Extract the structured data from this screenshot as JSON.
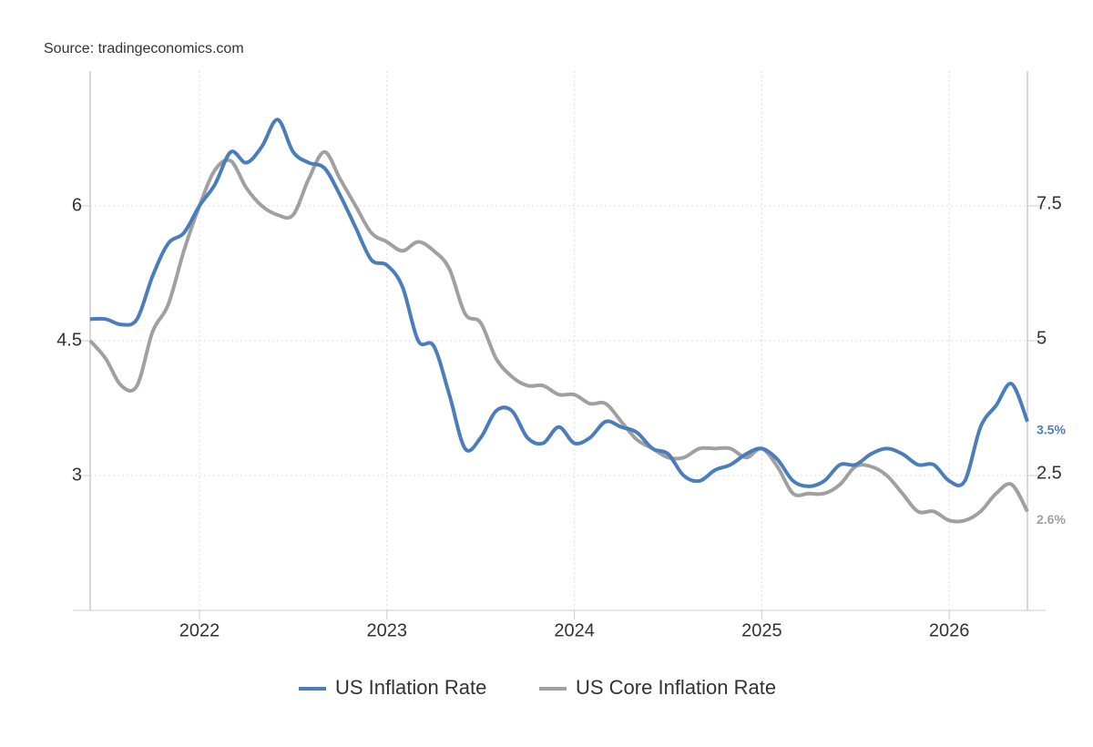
{
  "chart_data": {
    "type": "line",
    "source": "Source: tradingeconomics.com",
    "x": [
      2021.417,
      2021.5,
      2021.583,
      2021.667,
      2021.75,
      2021.833,
      2021.917,
      2022,
      2022.083,
      2022.167,
      2022.25,
      2022.333,
      2022.417,
      2022.5,
      2022.583,
      2022.667,
      2022.75,
      2022.833,
      2022.917,
      2023,
      2023.083,
      2023.167,
      2023.25,
      2023.333,
      2023.417,
      2023.5,
      2023.583,
      2023.667,
      2023.75,
      2023.833,
      2023.917,
      2024,
      2024.083,
      2024.167,
      2024.25,
      2024.333,
      2024.417,
      2024.5,
      2024.583,
      2024.667,
      2024.75,
      2024.833,
      2024.917,
      2025,
      2025.083,
      2025.167,
      2025.25,
      2025.333,
      2025.417,
      2025.5,
      2025.583,
      2025.667,
      2025.75,
      2025.833,
      2025.917,
      2026,
      2026.083,
      2026.167,
      2026.25,
      2026.333,
      2026.417
    ],
    "series": [
      {
        "name": "US Inflation Rate",
        "color": "#4a7ebb",
        "axis": "y2",
        "values": [
          5.4,
          5.4,
          5.3,
          5.4,
          6.2,
          6.8,
          7.0,
          7.5,
          7.9,
          8.5,
          8.3,
          8.6,
          9.1,
          8.5,
          8.3,
          8.2,
          7.7,
          7.1,
          6.5,
          6.4,
          6.0,
          5.0,
          4.9,
          4.0,
          3.0,
          3.2,
          3.7,
          3.7,
          3.2,
          3.1,
          3.4,
          3.1,
          3.2,
          3.5,
          3.4,
          3.3,
          3.0,
          2.9,
          2.5,
          2.4,
          2.6,
          2.7,
          2.9,
          3.0,
          2.8,
          2.4,
          2.3,
          2.4,
          2.7,
          2.7,
          2.9,
          3.0,
          2.9,
          2.7,
          2.7,
          2.4,
          2.4,
          3.4,
          3.8,
          4.2,
          3.5
        ],
        "value_labels": {
          "60": "3.5%"
        }
      },
      {
        "name": "US Core Inflation Rate",
        "color": "#a0a0a0",
        "values": [
          4.5,
          4.3,
          4.0,
          4.0,
          4.6,
          4.9,
          5.5,
          6.0,
          6.4,
          6.5,
          6.2,
          6.0,
          5.9,
          5.9,
          6.3,
          6.6,
          6.3,
          6.0,
          5.7,
          5.6,
          5.5,
          5.6,
          5.5,
          5.3,
          4.8,
          4.7,
          4.3,
          4.1,
          4.0,
          4.0,
          3.9,
          3.9,
          3.8,
          3.8,
          3.6,
          3.4,
          3.3,
          3.2,
          3.2,
          3.3,
          3.3,
          3.3,
          3.2,
          3.3,
          3.1,
          2.8,
          2.8,
          2.8,
          2.9,
          3.1,
          3.1,
          3.0,
          2.8,
          2.6,
          2.6,
          2.5,
          2.5,
          2.6,
          2.8,
          2.9,
          2.6
        ],
        "value_labels": {
          "60": "2.6%"
        }
      }
    ],
    "xlim": [
      2021.417,
      2026.417
    ],
    "xticks": [
      2022,
      2023,
      2024,
      2025,
      2026
    ],
    "ylim": [
      1.5,
      7.5
    ],
    "yticks": [
      3,
      4.5,
      6
    ],
    "y2lim": [
      0,
      10
    ],
    "y2ticks": [
      2.5,
      5,
      7.5
    ],
    "grid": true
  }
}
